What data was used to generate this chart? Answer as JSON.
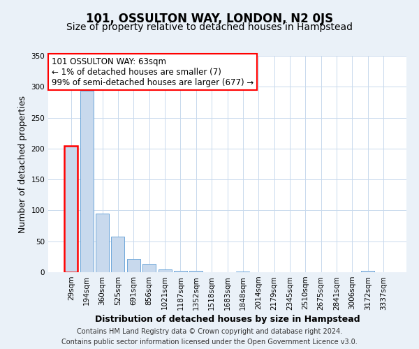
{
  "title": "101, OSSULTON WAY, LONDON, N2 0JS",
  "subtitle": "Size of property relative to detached houses in Hampstead",
  "xlabel": "Distribution of detached houses by size in Hampstead",
  "ylabel": "Number of detached properties",
  "bar_labels": [
    "29sqm",
    "194sqm",
    "360sqm",
    "525sqm",
    "691sqm",
    "856sqm",
    "1021sqm",
    "1187sqm",
    "1352sqm",
    "1518sqm",
    "1683sqm",
    "1848sqm",
    "2014sqm",
    "2179sqm",
    "2345sqm",
    "2510sqm",
    "2675sqm",
    "2841sqm",
    "3006sqm",
    "3172sqm",
    "3337sqm"
  ],
  "bar_heights": [
    204,
    293,
    95,
    58,
    21,
    13,
    5,
    2,
    2,
    0,
    0,
    1,
    0,
    0,
    0,
    0,
    0,
    0,
    0,
    2,
    0
  ],
  "bar_color": "#c8d9ed",
  "bar_edge_color": "#5b9bd5",
  "highlight_bar_index": 0,
  "highlight_edge_color": "#ff0000",
  "annotation_line1": "101 OSSULTON WAY: 63sqm",
  "annotation_line2": "← 1% of detached houses are smaller (7)",
  "annotation_line3": "99% of semi-detached houses are larger (677) →",
  "ylim": [
    0,
    350
  ],
  "yticks": [
    0,
    50,
    100,
    150,
    200,
    250,
    300,
    350
  ],
  "bg_color": "#eaf1f8",
  "plot_bg_color": "#ffffff",
  "footer_line1": "Contains HM Land Registry data © Crown copyright and database right 2024.",
  "footer_line2": "Contains public sector information licensed under the Open Government Licence v3.0.",
  "title_fontsize": 12,
  "subtitle_fontsize": 10,
  "axis_label_fontsize": 9,
  "tick_fontsize": 7.5,
  "annotation_fontsize": 8.5,
  "footer_fontsize": 7
}
